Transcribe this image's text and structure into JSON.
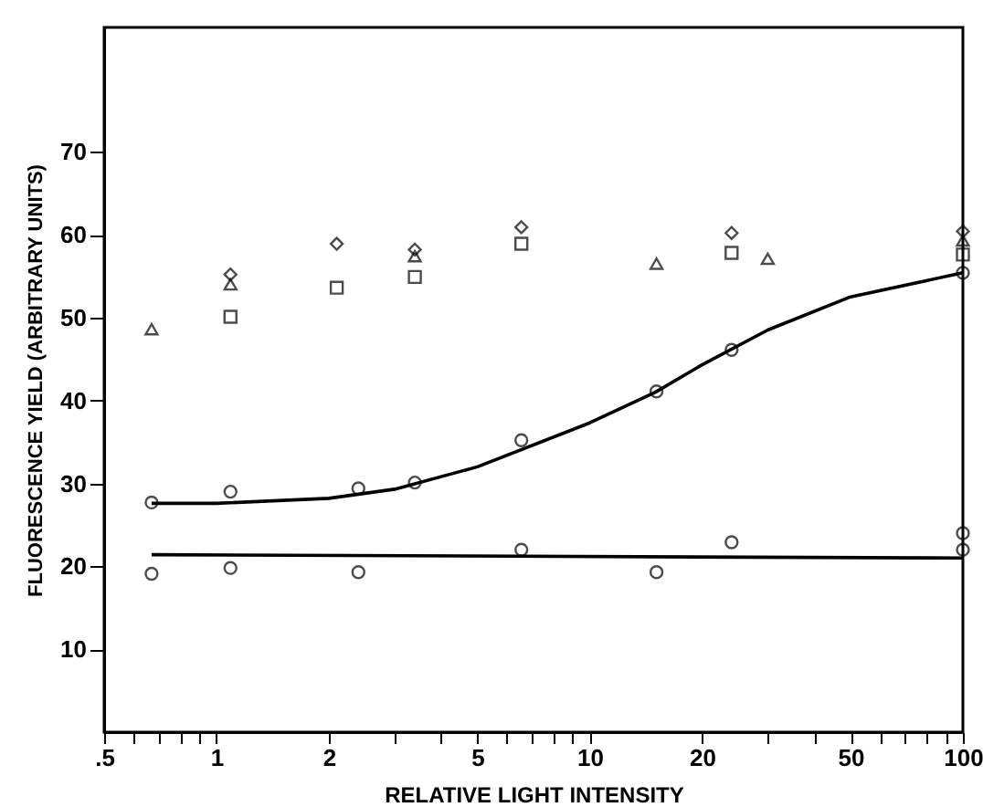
{
  "chart_data": {
    "type": "scatter",
    "xlabel": "RELATIVE LIGHT INTENSITY",
    "ylabel": "FLUORESCENCE YIELD (ARBITRARY UNITS)",
    "log": "x",
    "xlim": [
      0.5,
      100
    ],
    "ylim": [
      0,
      85
    ],
    "xticks": [
      {
        "value": 0.5,
        "label": ".5"
      },
      {
        "value": 0.6,
        "label": null
      },
      {
        "value": 0.7,
        "label": null
      },
      {
        "value": 0.8,
        "label": null
      },
      {
        "value": 0.9,
        "label": null
      },
      1,
      2,
      {
        "value": 3,
        "label": null
      },
      {
        "value": 4,
        "label": null
      },
      5,
      {
        "value": 6,
        "label": null
      },
      {
        "value": 7,
        "label": null
      },
      {
        "value": 8,
        "label": null
      },
      {
        "value": 9,
        "label": null
      },
      10,
      20,
      {
        "value": 30,
        "label": null
      },
      {
        "value": 40,
        "label": null
      },
      50,
      {
        "value": 60,
        "label": null
      },
      {
        "value": 70,
        "label": null
      },
      {
        "value": 80,
        "label": null
      },
      {
        "value": 90,
        "label": null
      },
      100
    ],
    "yticks": [
      10,
      20,
      30,
      40,
      50,
      60,
      70
    ],
    "grid": false,
    "series": [
      {
        "marker": "triangle",
        "color": "#000000",
        "x": [
          0.67,
          1.09,
          3.4,
          15.1,
          30,
          100
        ],
        "values": [
          48.6,
          54,
          57.4,
          56.5,
          57.1,
          59.3
        ]
      },
      {
        "marker": "diamond",
        "color": "#000000",
        "x": [
          1.09,
          2.1,
          3.4,
          6.56,
          24,
          100
        ],
        "values": [
          55.2,
          58.9,
          58.2,
          60.9,
          60.2,
          60.4
        ]
      },
      {
        "marker": "square",
        "color": "#000000",
        "x": [
          1.09,
          2.1,
          3.4,
          6.56,
          24,
          100
        ],
        "values": [
          50.1,
          53.6,
          54.9,
          58.9,
          57.8,
          57.6
        ]
      },
      {
        "marker": "circle",
        "color": "#000000",
        "x": [
          0.67,
          1.09,
          2.4,
          3.4,
          6.56,
          15.1,
          24,
          100
        ],
        "values": [
          27.7,
          29.0,
          29.4,
          30.1,
          35.2,
          41.1,
          46.1,
          55.4
        ]
      },
      {
        "marker": "circle",
        "color": "#000000",
        "x": [
          0.67,
          1.09,
          2.4,
          6.56,
          15.1,
          24,
          100,
          100
        ],
        "values": [
          19.1,
          19.8,
          19.3,
          22.0,
          19.3,
          22.9,
          24.0,
          22.0
        ]
      },
      {
        "type": "line",
        "line_style": "solid",
        "color": "#000000",
        "x": [
          0.67,
          1,
          2,
          3,
          5,
          10,
          15,
          20,
          30,
          50,
          100
        ],
        "values": [
          27.6,
          27.6,
          28.2,
          29.3,
          32,
          37.3,
          41,
          44.3,
          48.5,
          52.5,
          55.4
        ]
      },
      {
        "type": "line",
        "line_style": "solid",
        "color": "#000000",
        "x": [
          0.67,
          100
        ],
        "values": [
          21.4,
          21.0
        ]
      }
    ]
  }
}
